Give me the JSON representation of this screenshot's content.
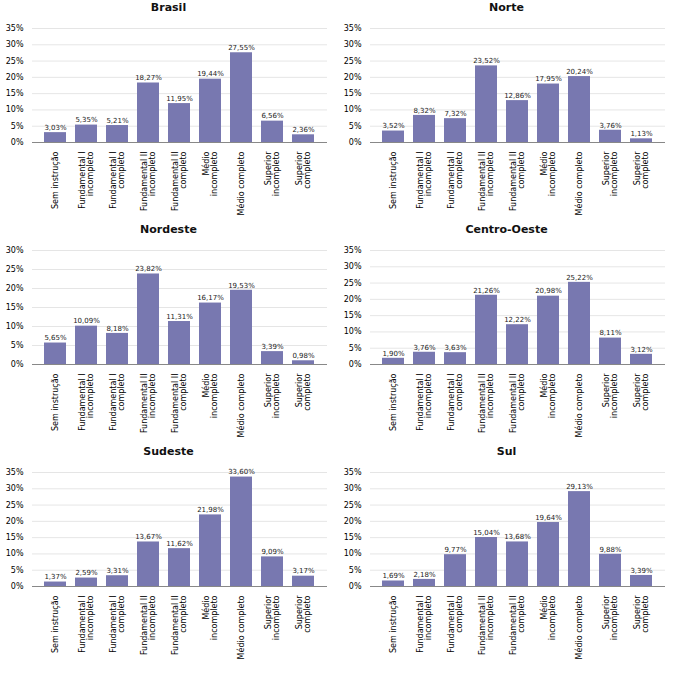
{
  "chart_data": [
    {
      "type": "bar",
      "title": "Brasil",
      "categories": [
        "Sem instrução",
        "Fundamental I\nincompleto",
        "Fundamental I\ncompleto",
        "Fundamental II\nincompleto",
        "Fundamental II\ncompleto",
        "Médio\nincompleto",
        "Médio completo",
        "Superior\nincompleto",
        "Superior\ncompleto"
      ],
      "values": [
        3.03,
        5.35,
        5.21,
        18.27,
        11.95,
        19.44,
        27.55,
        6.56,
        2.36
      ],
      "value_labels": [
        "3,03%",
        "5,35%",
        "5,21%",
        "18,27%",
        "11,95%",
        "19,44%",
        "27,55%",
        "6,56%",
        "2,36%"
      ],
      "color": "#7878b0",
      "ylim": [
        0,
        35
      ],
      "yticks": [
        {
          "value": 0,
          "label": "0%"
        },
        {
          "value": 5,
          "label": "5%"
        },
        {
          "value": 10,
          "label": "10%"
        },
        {
          "value": 15,
          "label": "15%"
        },
        {
          "value": 20,
          "label": "20%"
        },
        {
          "value": 25,
          "label": "25%"
        },
        {
          "value": 30,
          "label": "30%"
        },
        {
          "value": 35,
          "label": "35%"
        }
      ],
      "grid": true,
      "data_labels": true
    },
    {
      "type": "bar",
      "title": "Norte",
      "categories": [
        "Sem instrução",
        "Fundamental I\nincompleto",
        "Fundamental I\ncompleto",
        "Fundamental II\nincompleto",
        "Fundamental II\ncompleto",
        "Médio\nincompleto",
        "Médio completo",
        "Superior\nincompleto",
        "Superior\ncompleto"
      ],
      "values": [
        3.52,
        8.32,
        7.32,
        23.52,
        12.86,
        17.95,
        20.24,
        3.76,
        1.13
      ],
      "value_labels": [
        "3,52%",
        "8,32%",
        "7,32%",
        "23,52%",
        "12,86%",
        "17,95%",
        "20,24%",
        "3,76%",
        "1,13%"
      ],
      "color": "#7878b0",
      "ylim": [
        0,
        35
      ],
      "yticks": [
        {
          "value": 0,
          "label": "0%"
        },
        {
          "value": 5,
          "label": "5%"
        },
        {
          "value": 10,
          "label": "10%"
        },
        {
          "value": 15,
          "label": "15%"
        },
        {
          "value": 20,
          "label": "20%"
        },
        {
          "value": 25,
          "label": "25%"
        },
        {
          "value": 30,
          "label": "30%"
        },
        {
          "value": 35,
          "label": "35%"
        }
      ],
      "grid": true,
      "data_labels": true
    },
    {
      "type": "bar",
      "title": "Nordeste",
      "categories": [
        "Sem instrução",
        "Fundamental I\nincompleto",
        "Fundamental I\ncompleto",
        "Fundamental II\nincompleto",
        "Fundamental II\ncompleto",
        "Médio\nincompleto",
        "Médio completo",
        "Superior\nincompleto",
        "Superior\ncompleto"
      ],
      "values": [
        5.65,
        10.09,
        8.18,
        23.82,
        11.31,
        16.17,
        19.53,
        3.39,
        0.98
      ],
      "value_labels": [
        "5,65%",
        "10,09%",
        "8,18%",
        "23,82%",
        "11,31%",
        "16,17%",
        "19,53%",
        "3,39%",
        "0,98%"
      ],
      "color": "#7878b0",
      "ylim": [
        0,
        30
      ],
      "yticks": [
        {
          "value": 0,
          "label": "0%"
        },
        {
          "value": 5,
          "label": "5%"
        },
        {
          "value": 10,
          "label": "10%"
        },
        {
          "value": 15,
          "label": "15%"
        },
        {
          "value": 20,
          "label": "20%"
        },
        {
          "value": 25,
          "label": "25%"
        },
        {
          "value": 30,
          "label": "30%"
        }
      ],
      "grid": true,
      "data_labels": true
    },
    {
      "type": "bar",
      "title": "Centro-Oeste",
      "categories": [
        "Sem instrução",
        "Fundamental I\nincompleto",
        "Fundamental I\ncompleto",
        "Fundamental II\nincompleto",
        "Fundamental II\ncompleto",
        "Médio\nincompleto",
        "Médio completo",
        "Superior\nincompleto",
        "Superior\ncompleto"
      ],
      "values": [
        1.9,
        3.76,
        3.63,
        21.26,
        12.22,
        20.98,
        25.22,
        8.11,
        3.12
      ],
      "value_labels": [
        "1,90%",
        "3,76%",
        "3,63%",
        "21,26%",
        "12,22%",
        "20,98%",
        "25,22%",
        "8,11%",
        "3,12%"
      ],
      "color": "#7878b0",
      "ylim": [
        0,
        35
      ],
      "yticks": [
        {
          "value": 0,
          "label": "0%"
        },
        {
          "value": 5,
          "label": "5%"
        },
        {
          "value": 10,
          "label": "10%"
        },
        {
          "value": 15,
          "label": "15%"
        },
        {
          "value": 20,
          "label": "20%"
        },
        {
          "value": 25,
          "label": "25%"
        },
        {
          "value": 30,
          "label": "30%"
        },
        {
          "value": 35,
          "label": "35%"
        }
      ],
      "grid": true,
      "data_labels": true
    },
    {
      "type": "bar",
      "title": "Sudeste",
      "categories": [
        "Sem instrução",
        "Fundamental I\nincompleto",
        "Fundamental I\ncompleto",
        "Fundamental II\nincompleto",
        "Fundamental II\ncompleto",
        "Médio\nincompleto",
        "Médio completo",
        "Superior\nincompleto",
        "Superior\ncompleto"
      ],
      "values": [
        1.37,
        2.59,
        3.31,
        13.67,
        11.62,
        21.98,
        33.6,
        9.09,
        3.17
      ],
      "value_labels": [
        "1,37%",
        "2,59%",
        "3,31%",
        "13,67%",
        "11,62%",
        "21,98%",
        "33,60%",
        "9,09%",
        "3,17%"
      ],
      "color": "#7878b0",
      "ylim": [
        0,
        35
      ],
      "yticks": [
        {
          "value": 0,
          "label": "0%"
        },
        {
          "value": 5,
          "label": "5%"
        },
        {
          "value": 10,
          "label": "10%"
        },
        {
          "value": 15,
          "label": "15%"
        },
        {
          "value": 20,
          "label": "20%"
        },
        {
          "value": 25,
          "label": "25%"
        },
        {
          "value": 30,
          "label": "30%"
        },
        {
          "value": 35,
          "label": "35%"
        }
      ],
      "grid": true,
      "data_labels": true
    },
    {
      "type": "bar",
      "title": "Sul",
      "categories": [
        "Sem instrução",
        "Fundamental I\nincompleto",
        "Fundamental I\ncompleto",
        "Fundamental II\nincompleto",
        "Fundamental II\ncompleto",
        "Médio\nincompleto",
        "Médio completo",
        "Superior\nincompleto",
        "Superior\ncompleto"
      ],
      "values": [
        1.69,
        2.18,
        9.77,
        15.04,
        13.68,
        19.64,
        29.13,
        9.88,
        3.39
      ],
      "value_labels": [
        "1,69%",
        "2,18%",
        "9,77%",
        "15,04%",
        "13,68%",
        "19,64%",
        "29,13%",
        "9,88%",
        "3,39%"
      ],
      "color": "#7878b0",
      "ylim": [
        0,
        35
      ],
      "yticks": [
        {
          "value": 0,
          "label": "0%"
        },
        {
          "value": 5,
          "label": "5%"
        },
        {
          "value": 10,
          "label": "10%"
        },
        {
          "value": 15,
          "label": "15%"
        },
        {
          "value": 20,
          "label": "20%"
        },
        {
          "value": 25,
          "label": "25%"
        },
        {
          "value": 30,
          "label": "30%"
        },
        {
          "value": 35,
          "label": "35%"
        }
      ],
      "grid": true,
      "data_labels": true
    }
  ]
}
